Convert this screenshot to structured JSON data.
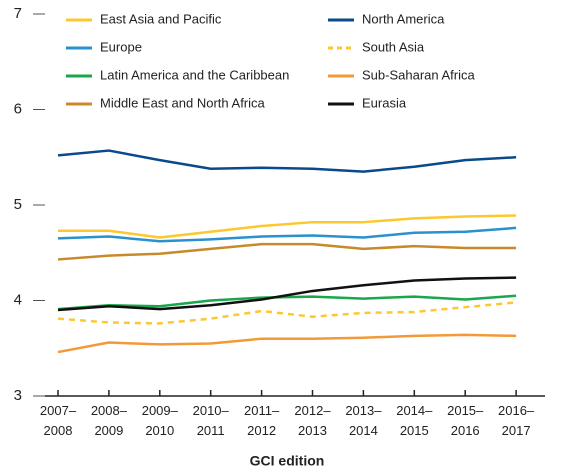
{
  "chart_data": {
    "type": "line",
    "xlabel": "GCI edition",
    "categories": [
      "2007–2008",
      "2008–2009",
      "2009–2010",
      "2010–2011",
      "2011–2012",
      "2012–2013",
      "2013–2014",
      "2014–2015",
      "2015–2016",
      "2016–2017"
    ],
    "ylim": [
      3,
      7
    ],
    "yticks": [
      3,
      4,
      5,
      6,
      7
    ],
    "series": [
      {
        "name": "East Asia and Pacific",
        "color": "#fdc82f",
        "values": [
          4.73,
          4.73,
          4.66,
          4.72,
          4.78,
          4.82,
          4.82,
          4.86,
          4.88,
          4.89
        ]
      },
      {
        "name": "North America",
        "color": "#0a4a8c",
        "values": [
          5.52,
          5.57,
          5.47,
          5.38,
          5.39,
          5.38,
          5.35,
          5.4,
          5.47,
          5.5
        ]
      },
      {
        "name": "Europe",
        "color": "#2a91cf",
        "values": [
          4.65,
          4.67,
          4.62,
          4.64,
          4.67,
          4.68,
          4.66,
          4.71,
          4.72,
          4.76
        ]
      },
      {
        "name": "South Asia",
        "color": "#fdc82f",
        "linestyle": "dashed",
        "values": [
          3.81,
          3.77,
          3.76,
          3.81,
          3.89,
          3.83,
          3.87,
          3.88,
          3.93,
          3.98
        ]
      },
      {
        "name": "Latin America and the Caribbean",
        "color": "#1aa64a",
        "values": [
          3.91,
          3.95,
          3.94,
          4.0,
          4.03,
          4.04,
          4.02,
          4.04,
          4.01,
          4.05
        ]
      },
      {
        "name": "Sub-Saharan Africa",
        "color": "#f29a38",
        "values": [
          3.46,
          3.56,
          3.54,
          3.55,
          3.6,
          3.6,
          3.61,
          3.63,
          3.64,
          3.63
        ]
      },
      {
        "name": "Middle East and North Africa",
        "color": "#c8892b",
        "values": [
          4.43,
          4.47,
          4.49,
          4.54,
          4.59,
          4.59,
          4.54,
          4.57,
          4.55,
          4.55
        ]
      },
      {
        "name": "Eurasia",
        "color": "#111111",
        "values": [
          3.9,
          3.94,
          3.91,
          3.95,
          4.01,
          4.1,
          4.16,
          4.21,
          4.23,
          4.24
        ]
      }
    ]
  }
}
